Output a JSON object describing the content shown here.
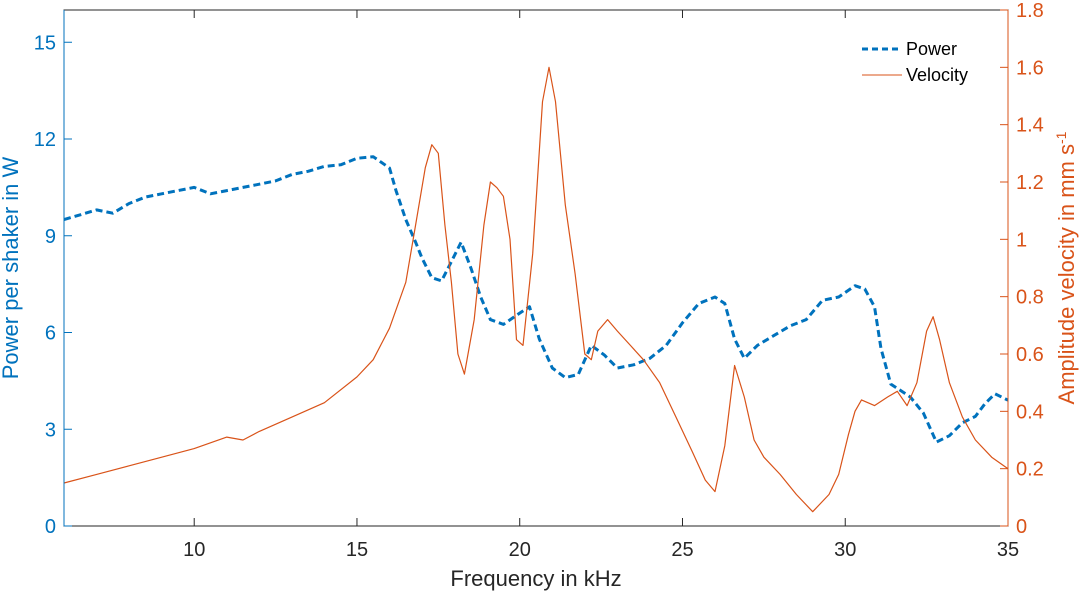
{
  "chart_data": {
    "type": "line",
    "title": "",
    "xlabel": "Frequency in kHz",
    "ylabel_left": "Power per shaker in W",
    "ylabel_right": "Amplitude velocity in mm s",
    "ylabel_right_exponent": "-1",
    "xlim": [
      6.0,
      35.0
    ],
    "ylim_left": [
      0,
      16
    ],
    "ylim_right": [
      0,
      1.8
    ],
    "xticks": [
      10,
      15,
      20,
      25,
      30,
      35
    ],
    "yticks_left": [
      0,
      3,
      6,
      9,
      12,
      15
    ],
    "yticks_right": [
      0,
      0.2,
      0.4,
      0.6,
      0.8,
      1,
      1.2,
      1.4,
      1.6,
      1.8
    ],
    "grid": false,
    "legend_position": "top-right",
    "colors": {
      "left_axis": "#0072BD",
      "right_axis": "#D95319",
      "axes": "#262626"
    },
    "series": [
      {
        "name": "Power",
        "axis": "left",
        "style": "dashed",
        "color": "#0072BD",
        "x": [
          6.0,
          6.5,
          7.0,
          7.5,
          8.0,
          8.5,
          9.0,
          9.5,
          10.0,
          10.5,
          11.0,
          11.5,
          12.0,
          12.5,
          13.0,
          13.5,
          14.0,
          14.5,
          15.0,
          15.5,
          16.0,
          16.2,
          16.5,
          16.8,
          17.0,
          17.3,
          17.6,
          17.9,
          18.2,
          18.5,
          18.8,
          19.1,
          19.5,
          20.0,
          20.3,
          20.6,
          21.0,
          21.4,
          21.8,
          22.2,
          22.6,
          23.0,
          23.5,
          24.0,
          24.5,
          25.0,
          25.5,
          26.0,
          26.3,
          26.6,
          26.9,
          27.3,
          27.8,
          28.3,
          28.8,
          29.3,
          29.8,
          30.3,
          30.6,
          30.9,
          31.1,
          31.4,
          31.7,
          32.0,
          32.4,
          32.8,
          33.2,
          33.6,
          34.0,
          34.3,
          34.6,
          35.0
        ],
        "values": [
          9.5,
          9.65,
          9.8,
          9.7,
          10.0,
          10.2,
          10.3,
          10.4,
          10.5,
          10.3,
          10.4,
          10.5,
          10.6,
          10.7,
          10.9,
          11.0,
          11.15,
          11.2,
          11.4,
          11.45,
          11.1,
          10.4,
          9.5,
          8.8,
          8.3,
          7.7,
          7.6,
          8.2,
          8.8,
          8.0,
          7.1,
          6.4,
          6.25,
          6.6,
          6.8,
          5.8,
          4.9,
          4.6,
          4.7,
          5.6,
          5.3,
          4.9,
          5.0,
          5.2,
          5.6,
          6.3,
          6.9,
          7.1,
          6.9,
          5.8,
          5.2,
          5.6,
          5.9,
          6.2,
          6.4,
          7.0,
          7.1,
          7.45,
          7.35,
          6.8,
          5.5,
          4.4,
          4.2,
          4.0,
          3.5,
          2.6,
          2.8,
          3.2,
          3.4,
          3.8,
          4.1,
          3.9
        ]
      },
      {
        "name": "Velocity",
        "axis": "right",
        "style": "solid",
        "color": "#D95319",
        "x": [
          6.0,
          7.0,
          8.0,
          9.0,
          10.0,
          11.0,
          11.5,
          12.0,
          13.0,
          14.0,
          15.0,
          15.5,
          16.0,
          16.5,
          16.8,
          17.1,
          17.3,
          17.5,
          17.7,
          17.9,
          18.1,
          18.3,
          18.6,
          18.9,
          19.1,
          19.3,
          19.5,
          19.7,
          19.9,
          20.1,
          20.4,
          20.7,
          20.9,
          21.1,
          21.4,
          21.7,
          22.0,
          22.2,
          22.4,
          22.7,
          23.0,
          23.4,
          23.8,
          24.3,
          24.8,
          25.3,
          25.7,
          26.0,
          26.3,
          26.6,
          26.9,
          27.2,
          27.5,
          28.0,
          28.5,
          29.0,
          29.5,
          29.8,
          30.1,
          30.3,
          30.5,
          30.9,
          31.3,
          31.6,
          31.9,
          32.2,
          32.5,
          32.7,
          32.9,
          33.2,
          33.6,
          34.0,
          34.5,
          35.0
        ],
        "values": [
          0.15,
          0.18,
          0.21,
          0.24,
          0.27,
          0.31,
          0.3,
          0.33,
          0.38,
          0.43,
          0.52,
          0.58,
          0.69,
          0.85,
          1.05,
          1.25,
          1.33,
          1.3,
          1.05,
          0.85,
          0.6,
          0.53,
          0.72,
          1.05,
          1.2,
          1.18,
          1.15,
          1.0,
          0.65,
          0.63,
          0.95,
          1.48,
          1.6,
          1.48,
          1.12,
          0.88,
          0.6,
          0.58,
          0.68,
          0.72,
          0.68,
          0.63,
          0.58,
          0.5,
          0.38,
          0.26,
          0.16,
          0.12,
          0.28,
          0.56,
          0.45,
          0.3,
          0.24,
          0.18,
          0.11,
          0.05,
          0.11,
          0.18,
          0.32,
          0.4,
          0.44,
          0.42,
          0.45,
          0.47,
          0.42,
          0.5,
          0.68,
          0.73,
          0.65,
          0.5,
          0.38,
          0.3,
          0.24,
          0.2
        ]
      }
    ]
  }
}
